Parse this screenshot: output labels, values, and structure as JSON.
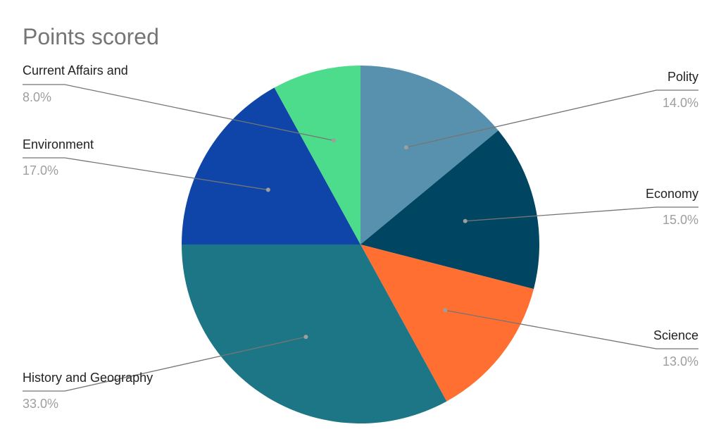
{
  "chart_data": {
    "type": "pie",
    "title": "Points scored",
    "categories": [
      "Polity",
      "Economy",
      "Science",
      "History and Geography",
      "Environment",
      "Current Affairs and"
    ],
    "values": [
      14.0,
      15.0,
      13.0,
      33.0,
      17.0,
      8.0
    ],
    "value_labels": [
      "14.0%",
      "15.0%",
      "13.0%",
      "33.0%",
      "17.0%",
      "8.0%"
    ],
    "colors": [
      "#5891ad",
      "#004561",
      "#ff6f31",
      "#1c7685",
      "#0f45a8",
      "#4cdc8b"
    ],
    "start_angle_deg": 0,
    "direction": "clockwise",
    "legend": "none (slice labels with leader lines)"
  }
}
